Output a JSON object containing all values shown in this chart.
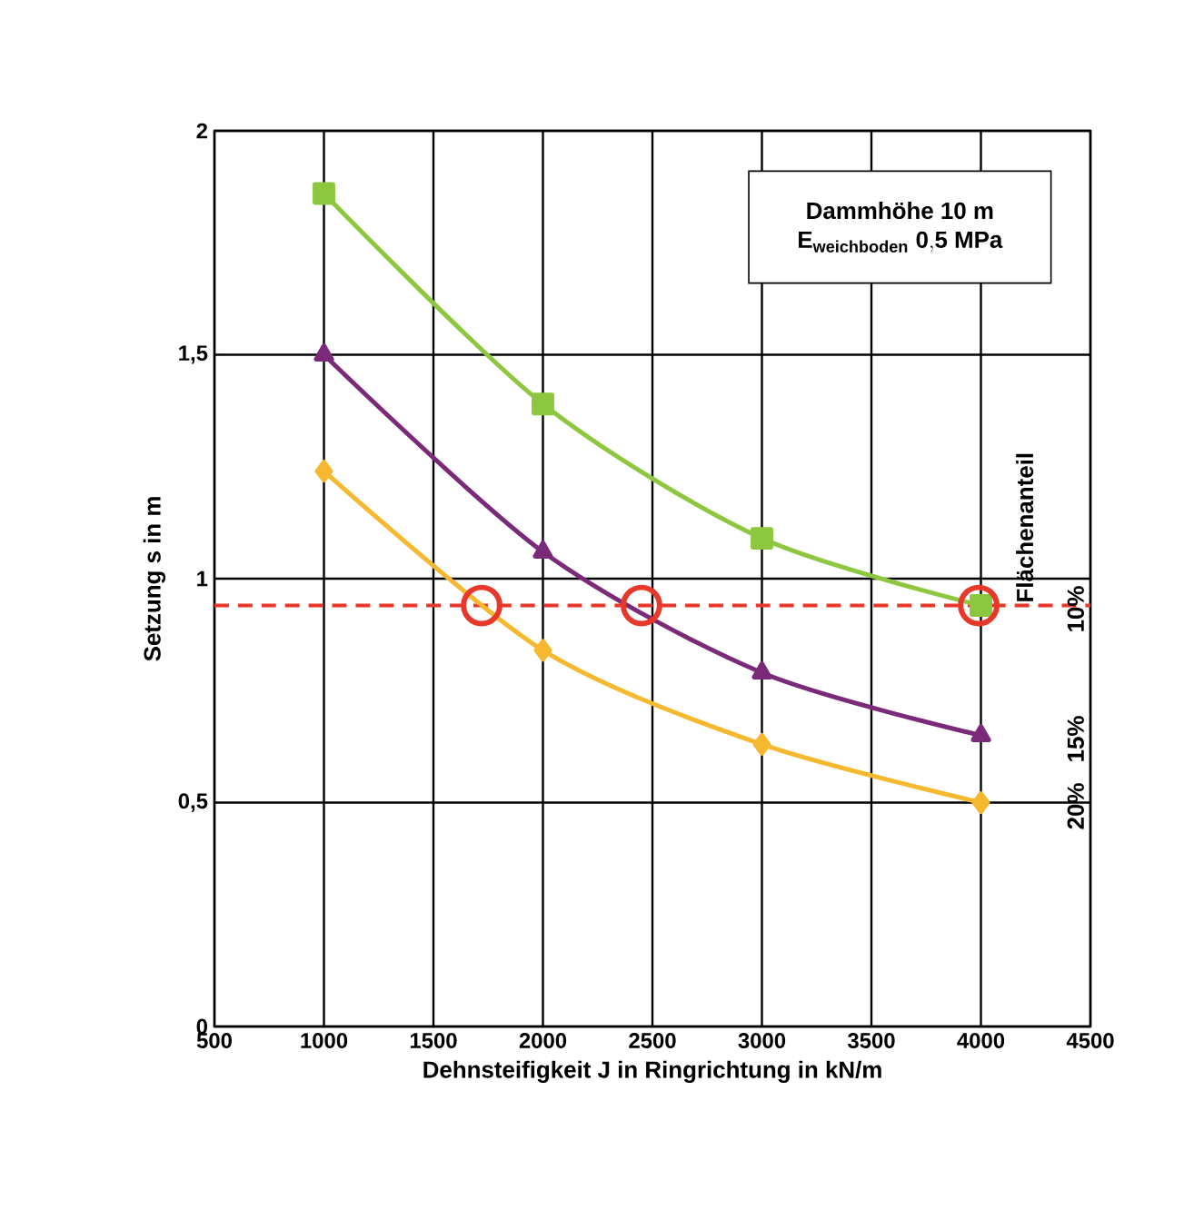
{
  "chart_data": {
    "type": "line",
    "xlabel": "Dehnsteifigkeit J in Ringrichtung in kN/m",
    "ylabel": "Setzung s in m",
    "legend_title": "Flächenanteil",
    "annotations": [
      "Dammhöhe 10 m",
      "\\mathbf{E}_{\\mathbf{weichboden}}\\ \\mathbf{0{,}5\\ MPa}"
    ],
    "x": [
      1000,
      2000,
      3000,
      4000
    ],
    "series": [
      {
        "name": "10%",
        "color": "#8dc63f",
        "marker": "square",
        "values": [
          1.86,
          1.39,
          1.09,
          0.94
        ]
      },
      {
        "name": "15%",
        "color": "#7b2a7a",
        "marker": "triangle",
        "values": [
          1.5,
          1.06,
          0.79,
          0.65
        ]
      },
      {
        "name": "20%",
        "color": "#f5b82e",
        "marker": "diamond",
        "values": [
          1.24,
          0.84,
          0.63,
          0.5
        ]
      },
      {
        "type": "scatter",
        "color": "#e8382a",
        "marker": "circle",
        "x": [
          1720,
          2450,
          3990
        ],
        "values": [
          0.94,
          0.94,
          0.94
        ]
      }
    ],
    "ref_lines": [
      {
        "axis": "y",
        "value": 0.94,
        "color": "#e8382a",
        "line_style": "dashed"
      }
    ],
    "xlim": [
      500,
      4500
    ],
    "xticks": [
      500,
      1000,
      1500,
      2000,
      2500,
      3000,
      3500,
      4000,
      4500
    ],
    "ylim": [
      0,
      2
    ],
    "yticks": [
      0,
      {
        "value": 0.5,
        "label": "0,5"
      },
      1,
      {
        "value": 1.5,
        "label": "1,5"
      },
      2
    ],
    "grid": true,
    "legend": "right"
  }
}
